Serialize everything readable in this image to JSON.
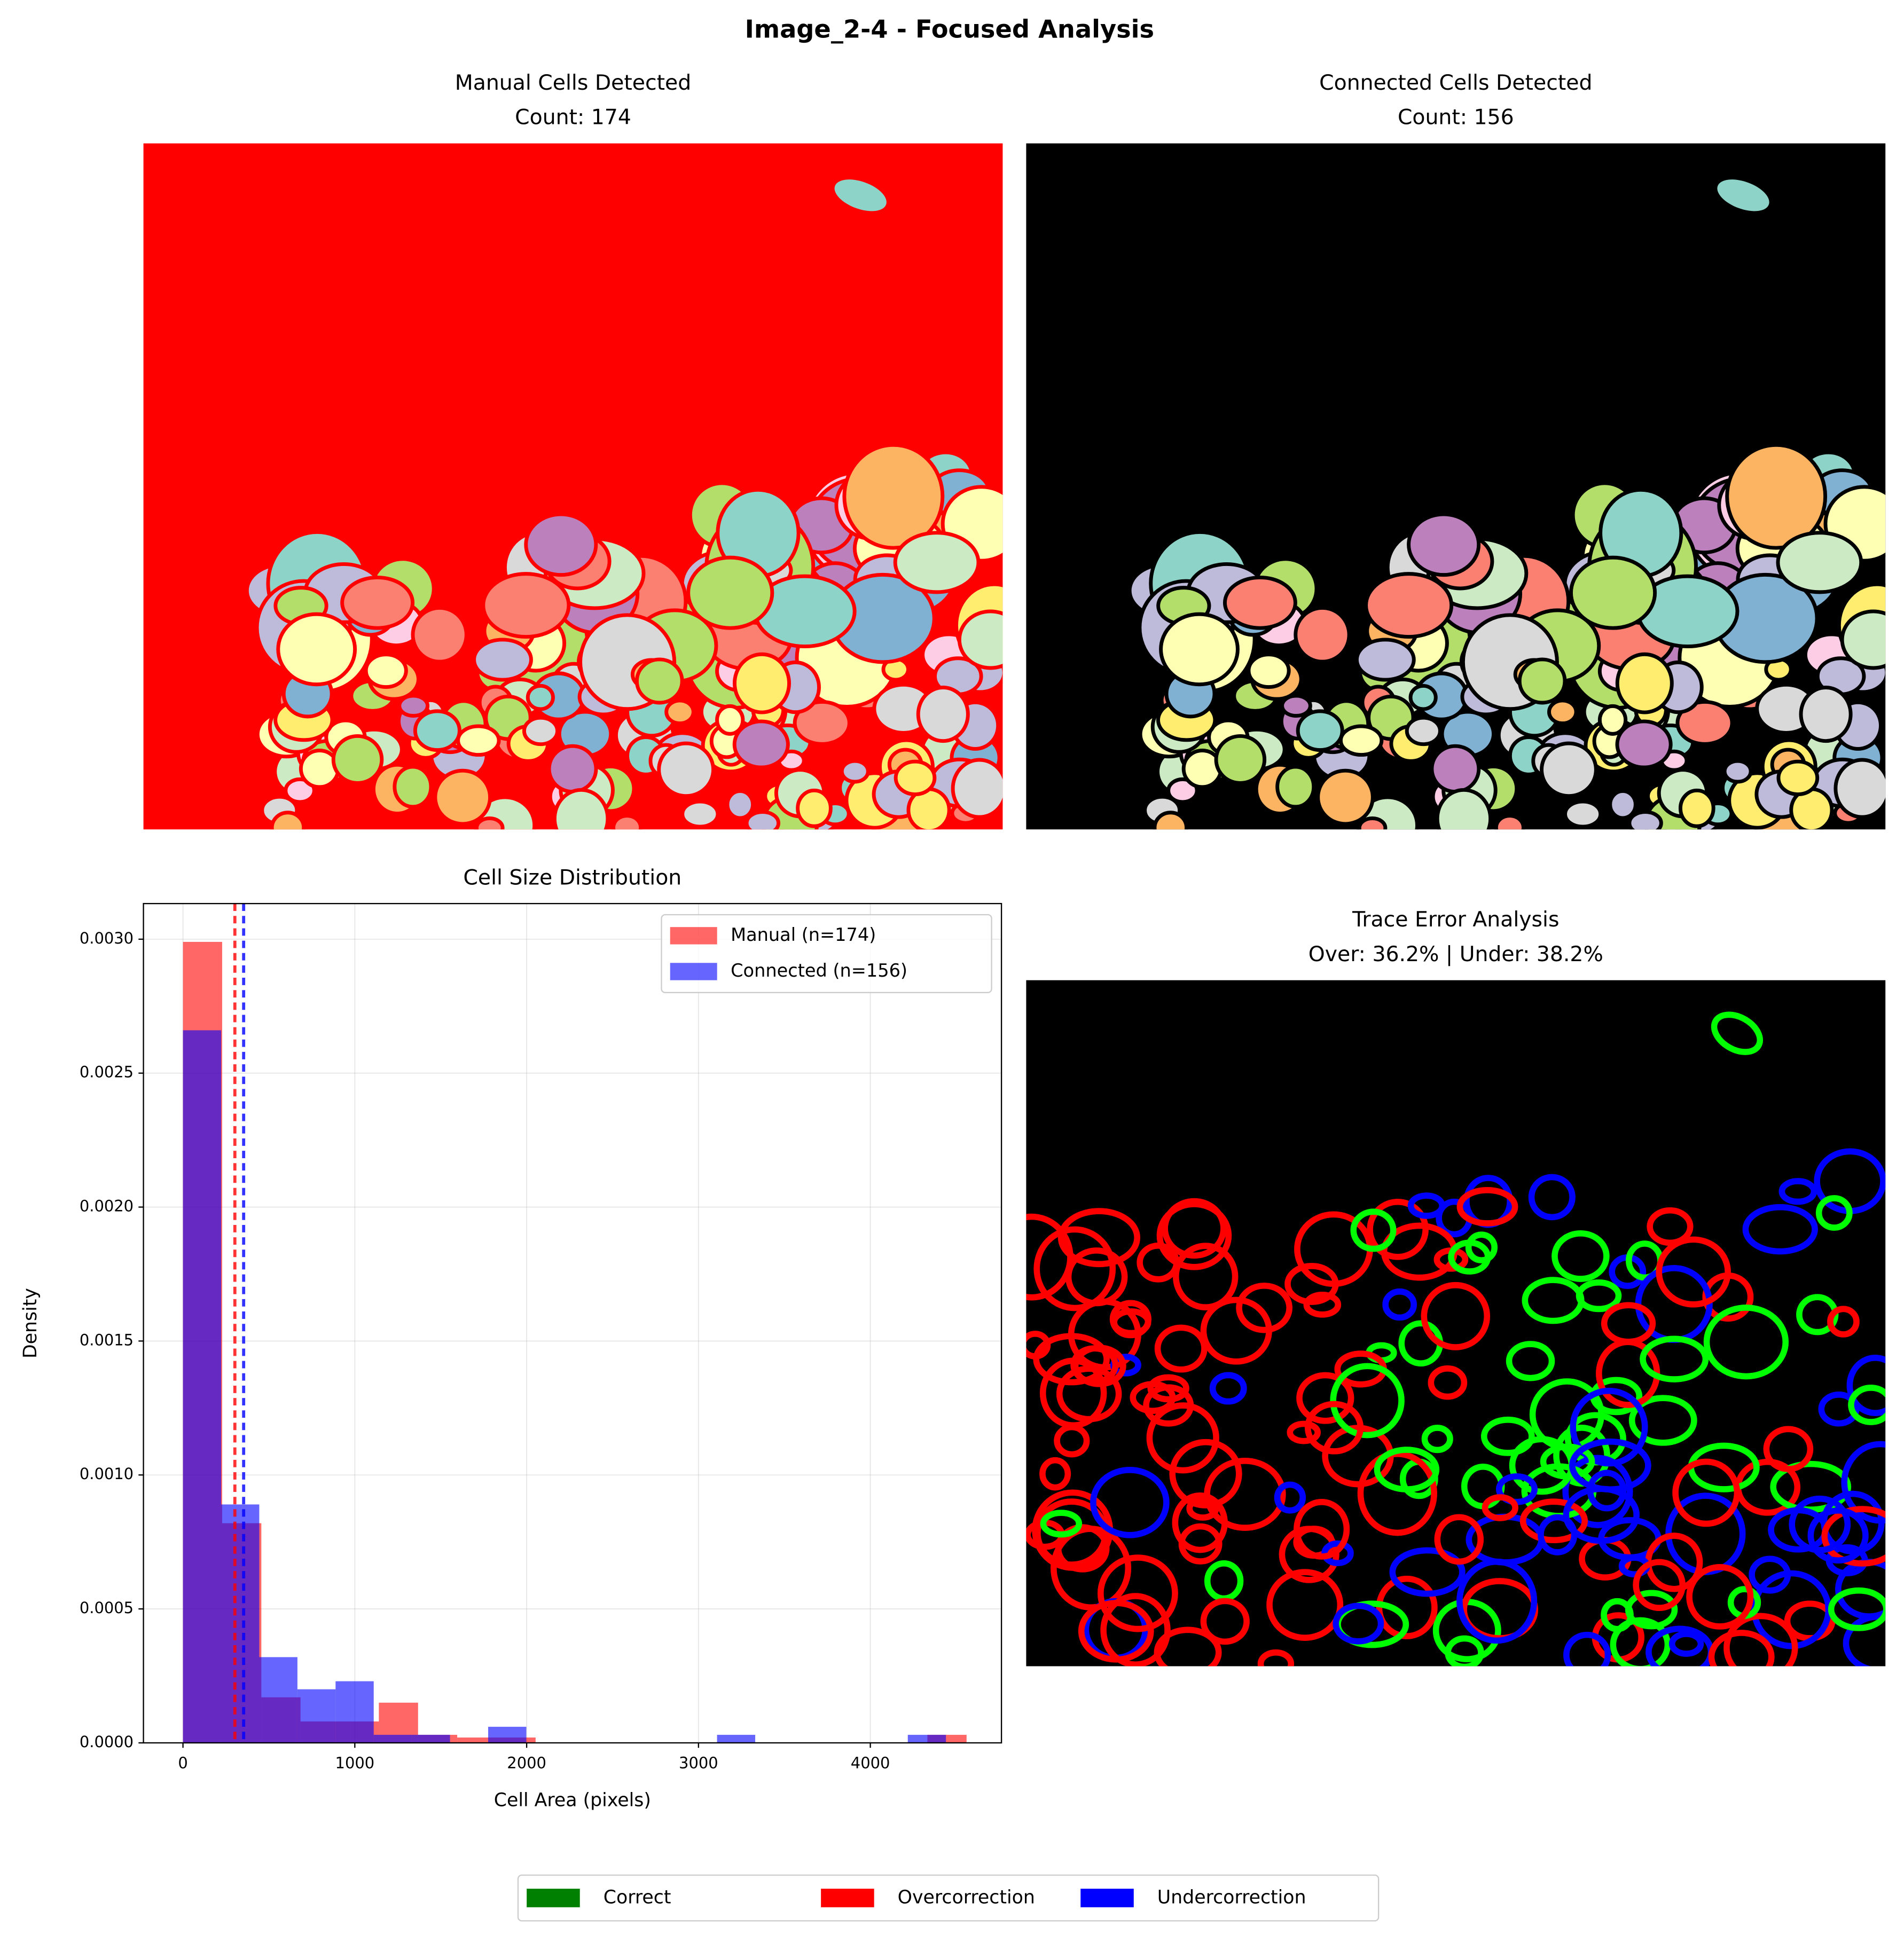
{
  "title": "Image_2-4 - Focused Analysis",
  "chart_data": [
    {
      "type": "image",
      "title_lines": [
        "Manual Cells Detected",
        "Count: 174"
      ],
      "background": "#ff0000",
      "outline": "#ff0000"
    },
    {
      "type": "image",
      "title_lines": [
        "Connected Cells Detected",
        "Count: 156"
      ],
      "background": "#000000",
      "outline": "#000000"
    },
    {
      "type": "histogram",
      "title": "Cell Size Distribution",
      "xlabel": "Cell Area (pixels)",
      "ylabel": "Density",
      "xlim": [
        -230,
        4763
      ],
      "ylim": [
        0,
        0.003133
      ],
      "xticks": [
        0,
        1000,
        2000,
        3000,
        4000
      ],
      "yticks": [
        {
          "value": 0,
          "label": "0.0000"
        },
        {
          "value": 0.0005,
          "label": "0.0005"
        },
        {
          "value": 0.001,
          "label": "0.0010"
        },
        {
          "value": 0.0015,
          "label": "0.0015"
        },
        {
          "value": 0.002,
          "label": "0.0020"
        },
        {
          "value": 0.0025,
          "label": "0.0025"
        },
        {
          "value": 0.003,
          "label": "0.0030"
        }
      ],
      "grid": true,
      "legend": "upper right",
      "series": [
        {
          "name": "Manual (n=174)",
          "color": "#ff0000",
          "mean": 302,
          "bins": [
            0,
            228,
            456,
            684,
            912,
            1140,
            1368,
            1596,
            1824,
            2052,
            2280,
            2508,
            2736,
            2964,
            3192,
            3420,
            3648,
            3876,
            4104,
            4332,
            4560
          ],
          "values": [
            0.00299,
            0.00082,
            0.00017,
            8e-05,
            8e-05,
            0.00015,
            3e-05,
            2e-05,
            2e-05,
            0,
            0,
            0,
            0,
            0,
            0,
            0,
            0,
            0,
            0,
            3e-05
          ]
        },
        {
          "name": "Connected (n=156)",
          "color": "#0000ff",
          "mean": 353,
          "bins": [
            0,
            222,
            444,
            666,
            888,
            1110,
            1332,
            1554,
            1776,
            1998,
            2220,
            2442,
            2664,
            2886,
            3108,
            3330,
            3552,
            3774,
            3996,
            4218,
            4440
          ],
          "values": [
            0.00266,
            0.00089,
            0.00032,
            0.0002,
            0.00023,
            3e-05,
            3e-05,
            0,
            6e-05,
            0,
            0,
            0,
            0,
            0,
            3e-05,
            0,
            0,
            0,
            0,
            3e-05
          ]
        }
      ]
    },
    {
      "type": "image",
      "title_lines": [
        "Trace Error Analysis",
        "Over: 36.2% | Under: 38.2%"
      ],
      "background": "#000000",
      "outline": "#000000"
    }
  ],
  "figure_legend": [
    {
      "label": "Correct",
      "color": "#008000"
    },
    {
      "label": "Overcorrection",
      "color": "#ff0000"
    },
    {
      "label": "Undercorrection",
      "color": "#0000ff"
    }
  ]
}
